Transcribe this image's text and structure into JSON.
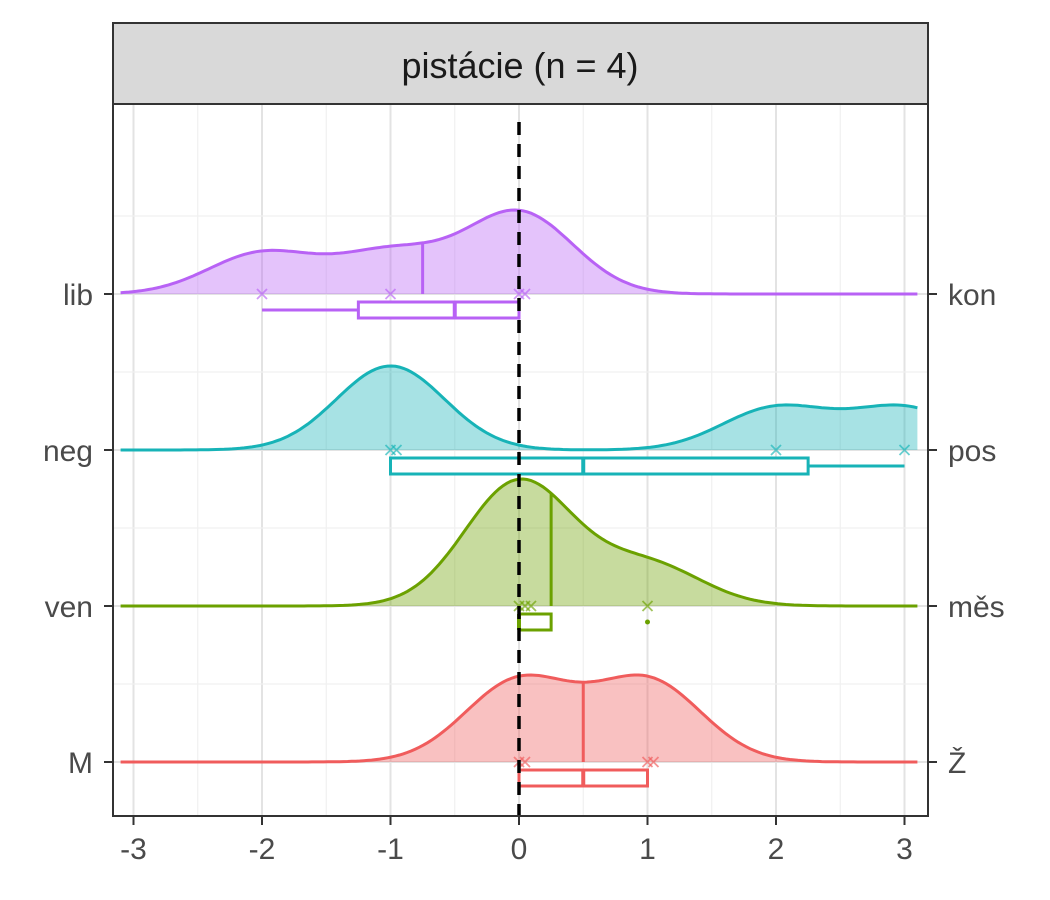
{
  "chart_data": {
    "type": "ridgeline",
    "title": "pistácie (n = 4)",
    "xlim": [
      -3.1,
      3.1
    ],
    "x_ticks": [
      -3,
      -2,
      -1,
      0,
      1,
      2,
      3
    ],
    "x_tick_labels": [
      "-3",
      "-2",
      "-1",
      "0",
      "1",
      "2",
      "3"
    ],
    "reference_line": 0,
    "grid": true,
    "series": [
      {
        "left_label": "lib",
        "right_label": "kon",
        "color": "#B862F5",
        "points": [
          -2,
          -1,
          0,
          0
        ],
        "mean": -0.75,
        "box": {
          "whisker_low": -2,
          "q1": -1.25,
          "median": -0.5,
          "q3": 0,
          "whisker_high": 0
        },
        "outliers": [],
        "bandwidth": 0.42
      },
      {
        "left_label": "neg",
        "right_label": "pos",
        "color": "#17B3B7",
        "points": [
          -1,
          -1,
          2,
          3
        ],
        "mean": 0.75,
        "box": {
          "whisker_low": -1,
          "q1": -1,
          "median": 0.5,
          "q3": 2.25,
          "whisker_high": 3
        },
        "outliers": [],
        "bandwidth": 0.42
      },
      {
        "left_label": "ven",
        "right_label": "měs",
        "color": "#6BA100",
        "points": [
          0,
          0,
          0,
          1
        ],
        "mean": 0.25,
        "box": {
          "whisker_low": 0,
          "q1": 0,
          "median": 0,
          "q3": 0.25,
          "whisker_high": 0.25
        },
        "outliers": [
          1
        ],
        "bandwidth": 0.42
      },
      {
        "left_label": "M",
        "right_label": "Ž",
        "color": "#F05C5C",
        "points": [
          0,
          0,
          1,
          1
        ],
        "mean": 0.5,
        "box": {
          "whisker_low": 0,
          "q1": 0,
          "median": 0.5,
          "q3": 1,
          "whisker_high": 1
        },
        "outliers": [],
        "bandwidth": 0.42
      }
    ]
  }
}
